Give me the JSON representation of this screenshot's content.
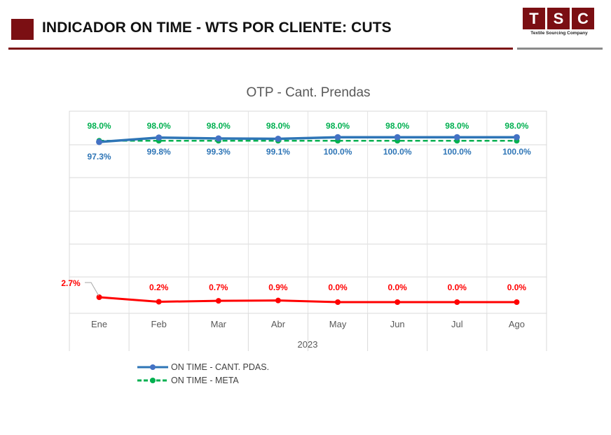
{
  "header": {
    "title": "INDICADOR ON TIME - WTS POR CLIENTE: CUTS",
    "logo_letters": [
      "T",
      "S",
      "C"
    ],
    "logo_subtitle": "Textile Sourcing Company"
  },
  "chart_data": {
    "type": "line",
    "title": "OTP - Cant. Prendas",
    "xlabel": "2023",
    "ylabel": "",
    "categories": [
      "Ene",
      "Feb",
      "Mar",
      "Abr",
      "May",
      "Jun",
      "Jul",
      "Ago"
    ],
    "series": [
      {
        "name": "ON TIME - CANT. PDAS.",
        "values": [
          97.3,
          99.8,
          99.3,
          99.1,
          100.0,
          100.0,
          100.0,
          100.0
        ],
        "labels": [
          "97.3%",
          "99.8%",
          "99.3%",
          "99.1%",
          "100.0%",
          "100.0%",
          "100.0%",
          "100.0%"
        ],
        "color": "#2e75b6",
        "marker_color": "#4472c4",
        "style": "solid",
        "in_legend": true
      },
      {
        "name": "ON TIME - META",
        "values": [
          98.0,
          98.0,
          98.0,
          98.0,
          98.0,
          98.0,
          98.0,
          98.0
        ],
        "labels": [
          "98.0%",
          "98.0%",
          "98.0%",
          "98.0%",
          "98.0%",
          "98.0%",
          "98.0%",
          "98.0%"
        ],
        "color": "#00b050",
        "marker_color": "#00b050",
        "style": "dashed",
        "in_legend": true
      },
      {
        "values": [
          2.7,
          0.2,
          0.7,
          0.9,
          0.0,
          0.0,
          0.0,
          0.0
        ],
        "labels": [
          "2.7%",
          "0.2%",
          "0.7%",
          "0.9%",
          "0.0%",
          "0.0%",
          "0.0%",
          "0.0%"
        ],
        "color": "#ff0000",
        "marker_color": "#ff0000",
        "style": "solid",
        "in_legend": false
      }
    ],
    "legend_position": "bottom-left",
    "grid": true
  }
}
